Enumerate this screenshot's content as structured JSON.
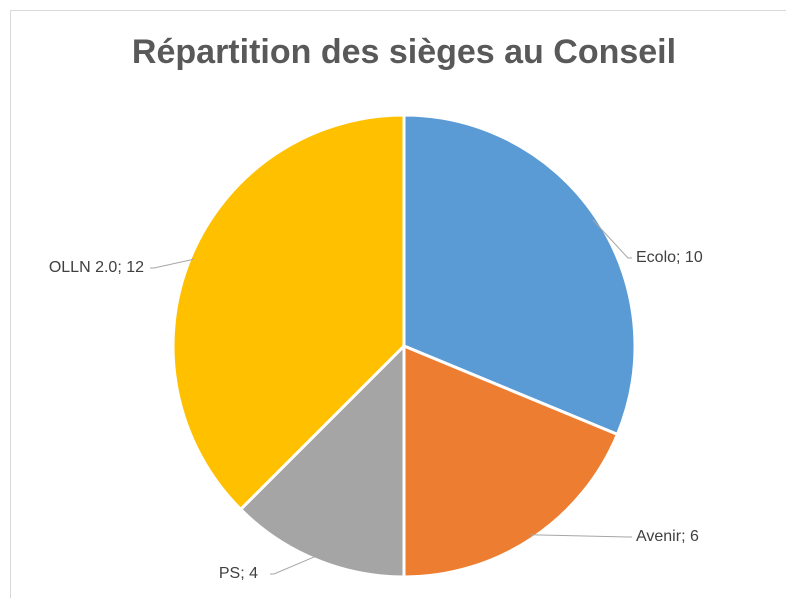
{
  "chart_data": {
    "type": "pie",
    "title": "Répartition des sièges au Conseil",
    "values": [
      10,
      6,
      4,
      12
    ],
    "value_labels": [
      "Ecolo; 10",
      "Avenir; 6",
      "PS; 4",
      "OLLN 2.0; 12"
    ],
    "colors": [
      "#5b9bd5",
      "#ed7d31",
      "#a5a5a5",
      "#ffc000"
    ]
  }
}
